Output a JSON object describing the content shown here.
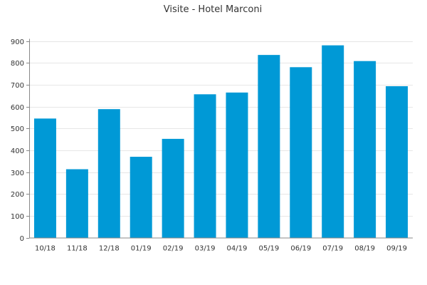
{
  "chart_data": {
    "type": "bar",
    "title": "Visite - Hotel Marconi",
    "xlabel": "",
    "ylabel": "",
    "categories": [
      "10/18",
      "11/18",
      "12/18",
      "01/19",
      "02/19",
      "03/19",
      "04/19",
      "05/19",
      "06/19",
      "07/19",
      "08/19",
      "09/19"
    ],
    "values": [
      545,
      313,
      588,
      370,
      452,
      656,
      664,
      836,
      780,
      880,
      808,
      693
    ],
    "ylim": [
      0,
      900
    ],
    "yticks": [
      0,
      100,
      200,
      300,
      400,
      500,
      600,
      700,
      800,
      900
    ],
    "grid": true,
    "legend": "none",
    "bar_color": "#0099d6"
  }
}
